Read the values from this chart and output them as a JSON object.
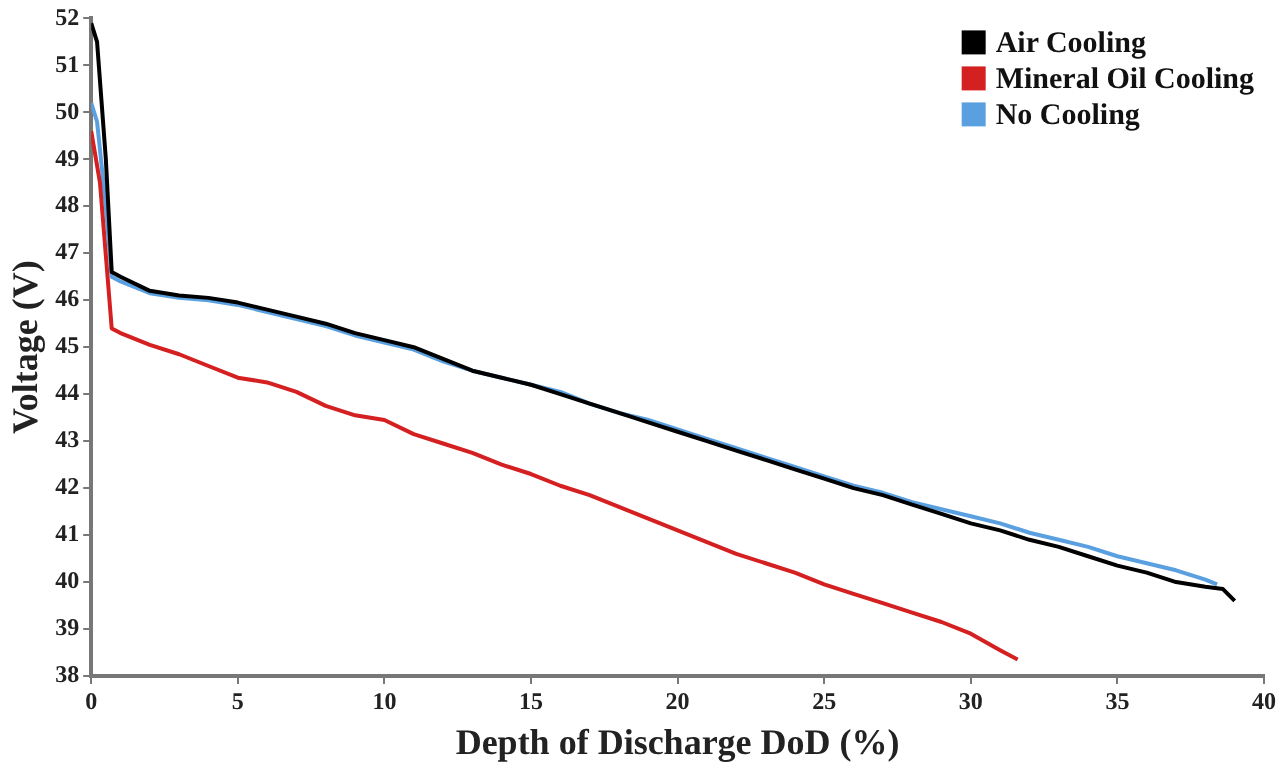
{
  "chart_data": {
    "type": "line",
    "xlabel": "Depth of Discharge DoD (%)",
    "ylabel": "Voltage (V)",
    "xlim": [
      0,
      40
    ],
    "xticks": [
      0,
      5,
      10,
      15,
      20,
      25,
      30,
      35,
      40
    ],
    "ylim": [
      38,
      52
    ],
    "yticks": [
      38,
      39,
      40,
      41,
      42,
      43,
      44,
      45,
      46,
      47,
      48,
      49,
      50,
      51,
      52
    ],
    "grid": false,
    "legend": "top right",
    "marker": "none",
    "line_style": "solid",
    "series": [
      {
        "name": "Air Cooling",
        "color": "#000000",
        "x": [
          0,
          0.2,
          0.5,
          0.7,
          1,
          2,
          3,
          4,
          5,
          6,
          7,
          8,
          9,
          10,
          11,
          12,
          13,
          14,
          15,
          16,
          17,
          18,
          19,
          20,
          21,
          22,
          23,
          24,
          25,
          26,
          27,
          28,
          29,
          30,
          31,
          32,
          33,
          34,
          35,
          36,
          37,
          38,
          38.6,
          39
        ],
        "values": [
          51.9,
          51.5,
          49,
          46.6,
          46.5,
          46.2,
          46.1,
          46.05,
          45.95,
          45.8,
          45.65,
          45.5,
          45.3,
          45.15,
          45,
          44.75,
          44.5,
          44.35,
          44.2,
          44,
          43.8,
          43.6,
          43.4,
          43.2,
          43,
          42.8,
          42.6,
          42.4,
          42.2,
          42,
          41.85,
          41.65,
          41.45,
          41.25,
          41.1,
          40.9,
          40.75,
          40.55,
          40.35,
          40.2,
          40,
          39.9,
          39.85,
          39.6
        ]
      },
      {
        "name": "Mineral Oil Cooling",
        "color": "#d42020",
        "x": [
          0,
          0.3,
          0.7,
          1,
          2,
          3,
          4,
          5,
          6,
          7,
          8,
          9,
          10,
          11,
          12,
          13,
          14,
          15,
          16,
          17,
          18,
          19,
          20,
          21,
          22,
          23,
          24,
          25,
          26,
          27,
          28,
          29,
          30,
          31,
          31.6
        ],
        "values": [
          49.6,
          48.5,
          45.4,
          45.3,
          45.05,
          44.85,
          44.6,
          44.35,
          44.25,
          44.05,
          43.75,
          43.55,
          43.45,
          43.15,
          42.95,
          42.75,
          42.5,
          42.3,
          42.05,
          41.85,
          41.6,
          41.35,
          41.1,
          40.85,
          40.6,
          40.4,
          40.2,
          39.95,
          39.75,
          39.55,
          39.35,
          39.15,
          38.9,
          38.55,
          38.35
        ]
      },
      {
        "name": "No Cooling",
        "color": "#5aa0e0",
        "x": [
          0,
          0.2,
          0.5,
          0.7,
          1,
          2,
          3,
          4,
          5,
          6,
          7,
          8,
          9,
          10,
          11,
          12,
          13,
          14,
          15,
          16,
          17,
          18,
          19,
          20,
          21,
          22,
          23,
          24,
          25,
          26,
          27,
          28,
          29,
          30,
          31,
          32,
          33,
          34,
          35,
          36,
          37,
          38,
          38.4
        ],
        "values": [
          50.2,
          49.8,
          48,
          46.5,
          46.4,
          46.15,
          46.05,
          46,
          45.9,
          45.75,
          45.6,
          45.45,
          45.25,
          45.1,
          44.95,
          44.7,
          44.5,
          44.35,
          44.2,
          44.05,
          43.8,
          43.6,
          43.45,
          43.25,
          43.05,
          42.85,
          42.65,
          42.45,
          42.25,
          42.05,
          41.9,
          41.7,
          41.55,
          41.4,
          41.25,
          41.05,
          40.9,
          40.75,
          40.55,
          40.4,
          40.25,
          40.05,
          39.95
        ]
      }
    ]
  }
}
